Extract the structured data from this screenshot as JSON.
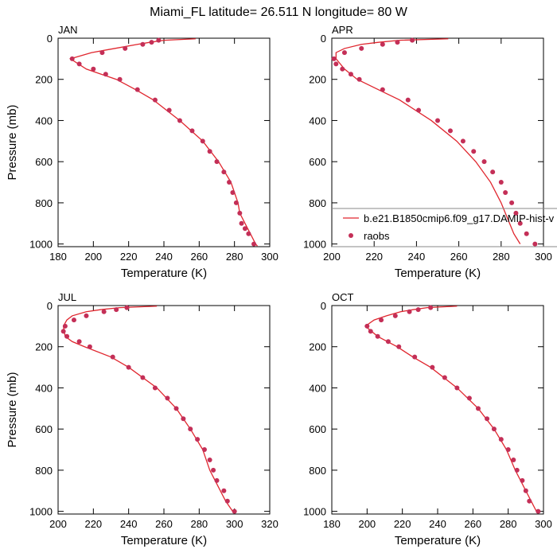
{
  "title": "Miami_FL  latitude= 26.511 N longitude= 80 W",
  "chart_data": [
    {
      "type": "line",
      "title": "JAN",
      "xlabel": "Temperature (K)",
      "ylabel": "Pressure (mb)",
      "xlim": [
        180,
        300
      ],
      "xticks": [
        180,
        200,
        220,
        240,
        260,
        280,
        300
      ],
      "ylim": [
        1013,
        0
      ],
      "yticks": [
        0,
        200,
        400,
        600,
        800,
        1000
      ],
      "series": [
        {
          "mode": "line",
          "color": "#e0262e",
          "x": [
            258,
            240,
            232,
            225,
            212,
            199,
            187,
            196,
            213,
            224,
            234,
            249,
            262,
            271,
            278,
            282,
            283,
            286,
            289,
            292,
            293
          ],
          "values": [
            3,
            10,
            20,
            30,
            50,
            70,
            100,
            150,
            200,
            250,
            300,
            400,
            500,
            600,
            700,
            800,
            850,
            900,
            950,
            1000,
            1010
          ]
        },
        {
          "mode": "markers",
          "color": "#c42f57",
          "x": [
            237,
            233,
            228,
            218,
            205,
            188,
            192,
            200,
            207,
            215,
            225,
            235,
            243,
            249,
            256,
            262,
            266,
            270,
            274,
            277,
            279,
            281,
            283,
            284,
            286,
            288,
            291
          ],
          "values": [
            10,
            20,
            30,
            50,
            70,
            100,
            125,
            150,
            175,
            200,
            250,
            300,
            350,
            400,
            450,
            500,
            550,
            600,
            650,
            700,
            750,
            800,
            850,
            900,
            925,
            950,
            1000
          ]
        }
      ]
    },
    {
      "type": "line",
      "title": "APR",
      "xlabel": "Temperature (K)",
      "xlim": [
        200,
        300
      ],
      "xticks": [
        200,
        220,
        240,
        260,
        280,
        300
      ],
      "ylim": [
        1013,
        0
      ],
      "yticks": [
        0,
        200,
        400,
        600,
        800,
        1000
      ],
      "legend": "lower right",
      "series": [
        {
          "name": "b.e21.B1850cmip6.f09_g17.DAMIP-hist-v",
          "mode": "line",
          "color": "#e0262e",
          "x": [
            255,
            232,
            222,
            214,
            206,
            202,
            202,
            206,
            212,
            222,
            232,
            247,
            259,
            268,
            275,
            280,
            282,
            284,
            286,
            289
          ],
          "values": [
            3,
            10,
            20,
            30,
            50,
            70,
            100,
            150,
            200,
            250,
            300,
            400,
            500,
            600,
            700,
            800,
            850,
            900,
            950,
            1000
          ]
        },
        {
          "name": "raobs",
          "mode": "markers",
          "color": "#c42f57",
          "x": [
            238,
            231,
            224,
            214,
            206,
            201,
            202,
            205,
            209,
            213,
            224,
            236,
            241,
            250,
            256,
            262,
            267,
            272,
            276,
            280,
            282,
            285,
            287,
            289,
            292,
            296
          ],
          "values": [
            10,
            20,
            30,
            50,
            70,
            100,
            125,
            150,
            175,
            200,
            250,
            300,
            350,
            400,
            450,
            500,
            550,
            600,
            650,
            700,
            750,
            800,
            850,
            900,
            950,
            1000
          ]
        }
      ]
    },
    {
      "type": "line",
      "title": "JUL",
      "xlabel": "Temperature (K)",
      "ylabel": "Pressure (mb)",
      "xlim": [
        200,
        320
      ],
      "xticks": [
        200,
        220,
        240,
        260,
        280,
        300,
        320
      ],
      "ylim": [
        1013,
        0
      ],
      "yticks": [
        0,
        200,
        400,
        600,
        800,
        1000
      ],
      "series": [
        {
          "mode": "line",
          "color": "#e0262e",
          "x": [
            256,
            235,
            224,
            216,
            208,
            205,
            203,
            204,
            208,
            215,
            230,
            240,
            256,
            267,
            275,
            282,
            286,
            289,
            292,
            295,
            299
          ],
          "values": [
            3,
            10,
            20,
            30,
            50,
            70,
            100,
            150,
            175,
            200,
            250,
            300,
            400,
            500,
            600,
            700,
            800,
            850,
            900,
            950,
            1000
          ]
        },
        {
          "mode": "markers",
          "color": "#c42f57",
          "x": [
            239,
            233,
            226,
            216,
            209,
            204,
            203,
            205,
            212,
            218,
            231,
            240,
            248,
            255,
            262,
            267,
            271,
            275,
            279,
            283,
            286,
            288,
            290,
            294,
            296,
            300
          ],
          "values": [
            10,
            20,
            30,
            50,
            70,
            100,
            125,
            150,
            175,
            200,
            250,
            300,
            350,
            400,
            450,
            500,
            550,
            600,
            650,
            700,
            750,
            800,
            850,
            900,
            950,
            1000
          ]
        }
      ]
    },
    {
      "type": "line",
      "title": "OCT",
      "xlabel": "Temperature (K)",
      "xlim": [
        180,
        300
      ],
      "xticks": [
        180,
        200,
        220,
        240,
        260,
        280,
        300
      ],
      "ylim": [
        1013,
        0
      ],
      "yticks": [
        0,
        200,
        400,
        600,
        800,
        1000
      ],
      "series": [
        {
          "mode": "line",
          "color": "#e0262e",
          "x": [
            251,
            234,
            226,
            219,
            211,
            204,
            199,
            206,
            217,
            226,
            236,
            251,
            263,
            272,
            279,
            284,
            287,
            290,
            293,
            296
          ],
          "values": [
            3,
            10,
            20,
            30,
            50,
            70,
            100,
            150,
            200,
            250,
            300,
            400,
            500,
            600,
            700,
            800,
            850,
            900,
            950,
            1000
          ]
        },
        {
          "mode": "markers",
          "color": "#c42f57",
          "x": [
            236,
            229,
            224,
            216,
            208,
            200,
            202,
            206,
            212,
            218,
            227,
            237,
            244,
            251,
            258,
            263,
            268,
            272,
            276,
            280,
            283,
            285,
            288,
            290,
            292,
            297
          ],
          "values": [
            10,
            20,
            30,
            50,
            70,
            100,
            125,
            150,
            175,
            200,
            250,
            300,
            350,
            400,
            450,
            500,
            550,
            600,
            650,
            700,
            750,
            800,
            850,
            900,
            950,
            1000
          ]
        }
      ]
    }
  ]
}
